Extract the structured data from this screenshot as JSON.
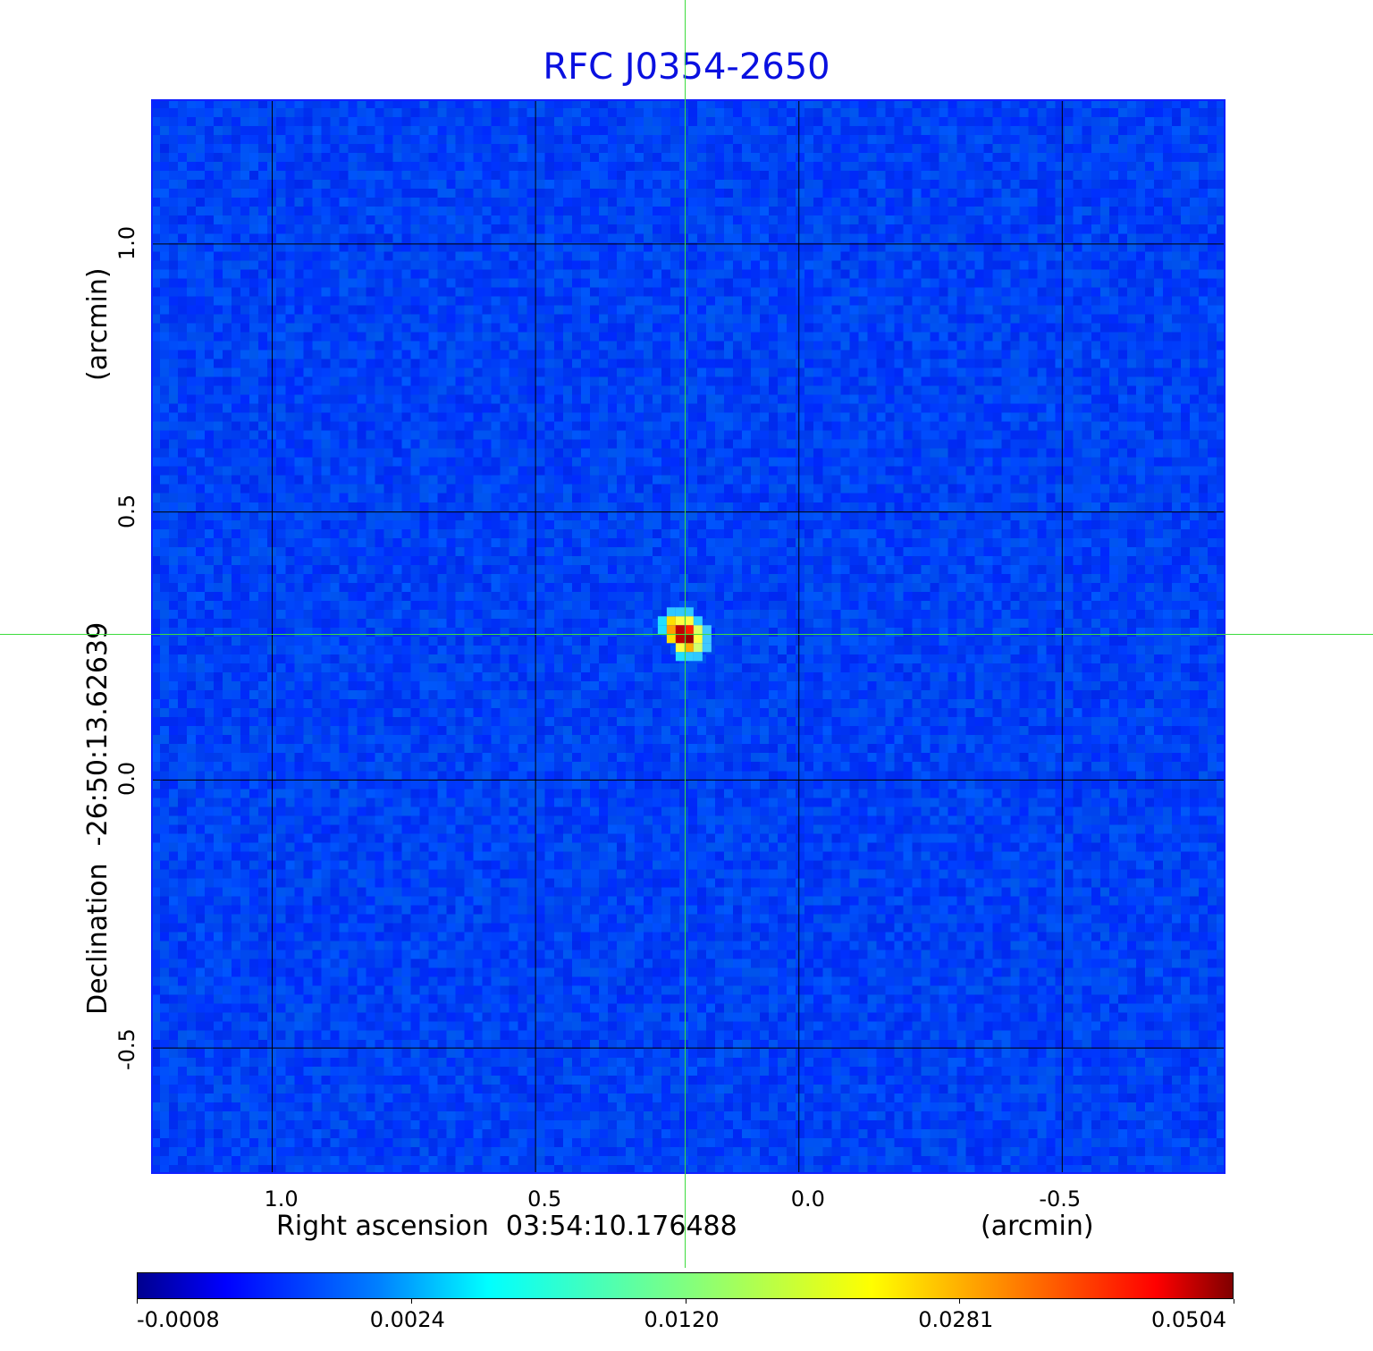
{
  "chart_data": {
    "type": "heatmap",
    "title": "RFC J0354-2650",
    "xlabel": "Right ascension  03:54:10.176488",
    "xunit": "(arcmin)",
    "ylabel": "Declination  -26:50:13.62639",
    "yunit": "(arcmin)",
    "xlim": [
      1.23,
      -0.81
    ],
    "ylim": [
      -0.735,
      1.27
    ],
    "xticks": [
      {
        "v": 1.0,
        "label": "1.0"
      },
      {
        "v": 0.5,
        "label": "0.5"
      },
      {
        "v": 0.0,
        "label": "0.0"
      },
      {
        "v": -0.5,
        "label": "-0.5"
      }
    ],
    "yticks": [
      {
        "v": 1.0,
        "label": "1.0"
      },
      {
        "v": 0.5,
        "label": "0.5"
      },
      {
        "v": 0.0,
        "label": "0.0"
      },
      {
        "v": -0.5,
        "label": "-0.5"
      }
    ],
    "grid": true,
    "crosshair": {
      "x": 0.217,
      "y": 0.272,
      "color": "#3ddc3d"
    },
    "source_peak": {
      "x": 0.217,
      "y": 0.272,
      "value": 0.0504
    },
    "colormap": "jet",
    "colorbar": {
      "orientation": "horizontal",
      "position": "bottom",
      "ticks": [
        "-0.0008",
        "0.0024",
        "0.0120",
        "0.0281",
        "0.0504"
      ],
      "range": [
        -0.0008,
        0.0504
      ]
    }
  }
}
